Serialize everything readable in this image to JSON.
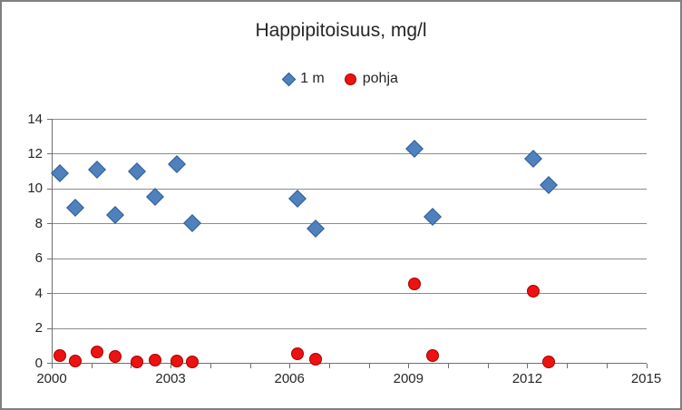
{
  "chart_data": {
    "type": "scatter",
    "title": "Happipitoisuus, mg/l",
    "xlabel": "",
    "ylabel": "",
    "xlim": [
      2000,
      2015
    ],
    "ylim": [
      0,
      14
    ],
    "x_tick_labels": [
      2000,
      2003,
      2006,
      2009,
      2012,
      2015
    ],
    "x_minor_tick_step": 1,
    "y_ticks": [
      0,
      2,
      4,
      6,
      8,
      10,
      12,
      14
    ],
    "grid": "horizontal",
    "legend_position": "top-center",
    "series": [
      {
        "name": "1 m",
        "marker": "diamond",
        "fill": "#4f81bd",
        "stroke": "#2e5d94",
        "points": [
          [
            2000.2,
            10.9
          ],
          [
            2000.6,
            8.9
          ],
          [
            2001.15,
            11.1
          ],
          [
            2001.6,
            8.5
          ],
          [
            2002.15,
            11.0
          ],
          [
            2002.6,
            9.5
          ],
          [
            2003.15,
            11.4
          ],
          [
            2003.55,
            8.0
          ],
          [
            2006.2,
            9.4
          ],
          [
            2006.65,
            7.7
          ],
          [
            2009.15,
            12.3
          ],
          [
            2009.6,
            8.4
          ],
          [
            2012.15,
            11.7
          ],
          [
            2012.55,
            10.2
          ]
        ]
      },
      {
        "name": "pohja",
        "marker": "circle",
        "fill": "#ee1111",
        "stroke": "#a40000",
        "points": [
          [
            2000.2,
            0.4
          ],
          [
            2000.6,
            0.1
          ],
          [
            2001.15,
            0.6
          ],
          [
            2001.6,
            0.35
          ],
          [
            2002.15,
            0.05
          ],
          [
            2002.6,
            0.15
          ],
          [
            2003.15,
            0.1
          ],
          [
            2003.55,
            0.05
          ],
          [
            2006.2,
            0.5
          ],
          [
            2006.65,
            0.2
          ],
          [
            2009.15,
            4.55
          ],
          [
            2009.6,
            0.4
          ],
          [
            2012.15,
            4.1
          ],
          [
            2012.55,
            0.05
          ]
        ]
      }
    ],
    "colors": {
      "gridline": "#8c8c8c",
      "axis": "#6f6f6f",
      "text": "#262626",
      "frame": "#7f7f7f"
    }
  }
}
